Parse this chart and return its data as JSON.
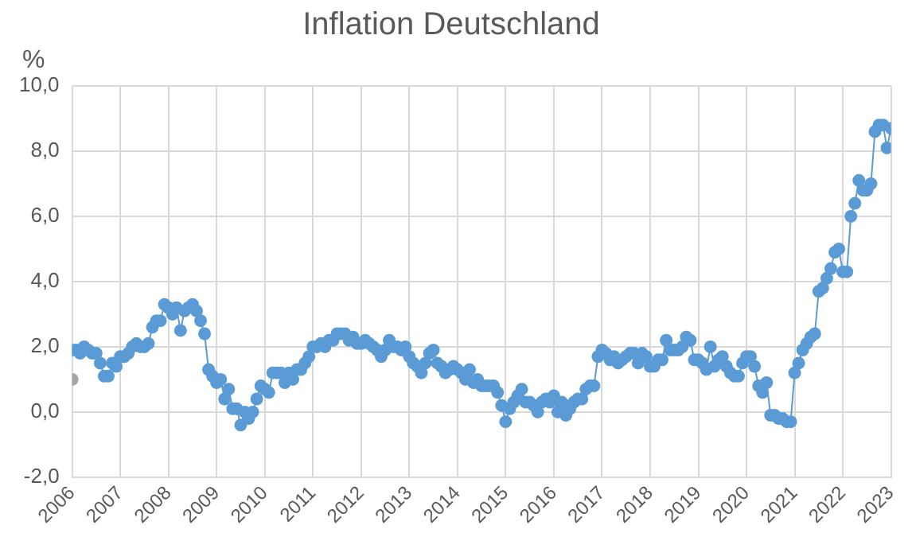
{
  "chart_data": {
    "type": "line",
    "title": "Inflation Deutschland",
    "ylabel": "%",
    "xlim": [
      "2006",
      "2023"
    ],
    "xticks": [
      "2006",
      "2007",
      "2008",
      "2009",
      "2010",
      "2011",
      "2012",
      "2013",
      "2014",
      "2015",
      "2016",
      "2017",
      "2018",
      "2019",
      "2020",
      "2021",
      "2022",
      "2023"
    ],
    "ylim": [
      -2,
      10
    ],
    "yticks": [
      {
        "value": -2,
        "label": "-2,0"
      },
      {
        "value": 0,
        "label": "0,0"
      },
      {
        "value": 2,
        "label": "2,0"
      },
      {
        "value": 4,
        "label": "4,0"
      },
      {
        "value": 6,
        "label": "6,0"
      },
      {
        "value": 8,
        "label": "8,0"
      },
      {
        "value": 10,
        "label": "10,0"
      }
    ],
    "grid": true,
    "legend": false,
    "marker": "circle",
    "line_style": "solid",
    "series": [
      {
        "color": "#5b9bd5",
        "x": [
          "2006-01",
          "2006-02",
          "2006-03",
          "2006-04",
          "2006-05",
          "2006-06",
          "2006-07",
          "2006-08",
          "2006-09",
          "2006-10",
          "2006-11",
          "2006-12",
          "2007-01",
          "2007-02",
          "2007-03",
          "2007-04",
          "2007-05",
          "2007-06",
          "2007-07",
          "2007-08",
          "2007-09",
          "2007-10",
          "2007-11",
          "2007-12",
          "2008-01",
          "2008-02",
          "2008-03",
          "2008-04",
          "2008-05",
          "2008-06",
          "2008-07",
          "2008-08",
          "2008-09",
          "2008-10",
          "2008-11",
          "2008-12",
          "2009-01",
          "2009-02",
          "2009-03",
          "2009-04",
          "2009-05",
          "2009-06",
          "2009-07",
          "2009-08",
          "2009-09",
          "2009-10",
          "2009-11",
          "2009-12",
          "2010-01",
          "2010-02",
          "2010-03",
          "2010-04",
          "2010-05",
          "2010-06",
          "2010-07",
          "2010-08",
          "2010-09",
          "2010-10",
          "2010-11",
          "2010-12",
          "2011-01",
          "2011-02",
          "2011-03",
          "2011-04",
          "2011-05",
          "2011-06",
          "2011-07",
          "2011-08",
          "2011-09",
          "2011-10",
          "2011-11",
          "2011-12",
          "2012-01",
          "2012-02",
          "2012-03",
          "2012-04",
          "2012-05",
          "2012-06",
          "2012-07",
          "2012-08",
          "2012-09",
          "2012-10",
          "2012-11",
          "2012-12",
          "2013-01",
          "2013-02",
          "2013-03",
          "2013-04",
          "2013-05",
          "2013-06",
          "2013-07",
          "2013-08",
          "2013-09",
          "2013-10",
          "2013-11",
          "2013-12",
          "2014-01",
          "2014-02",
          "2014-03",
          "2014-04",
          "2014-05",
          "2014-06",
          "2014-07",
          "2014-08",
          "2014-09",
          "2014-10",
          "2014-11",
          "2014-12",
          "2015-01",
          "2015-02",
          "2015-03",
          "2015-04",
          "2015-05",
          "2015-06",
          "2015-07",
          "2015-08",
          "2015-09",
          "2015-10",
          "2015-11",
          "2015-12",
          "2016-01",
          "2016-02",
          "2016-03",
          "2016-04",
          "2016-05",
          "2016-06",
          "2016-07",
          "2016-08",
          "2016-09",
          "2016-10",
          "2016-11",
          "2016-12",
          "2017-01",
          "2017-02",
          "2017-03",
          "2017-04",
          "2017-05",
          "2017-06",
          "2017-07",
          "2017-08",
          "2017-09",
          "2017-10",
          "2017-11",
          "2017-12",
          "2018-01",
          "2018-02",
          "2018-03",
          "2018-04",
          "2018-05",
          "2018-06",
          "2018-07",
          "2018-08",
          "2018-09",
          "2018-10",
          "2018-11",
          "2018-12",
          "2019-01",
          "2019-02",
          "2019-03",
          "2019-04",
          "2019-05",
          "2019-06",
          "2019-07",
          "2019-08",
          "2019-09",
          "2019-10",
          "2019-11",
          "2019-12",
          "2020-01",
          "2020-02",
          "2020-03",
          "2020-04",
          "2020-05",
          "2020-06",
          "2020-07",
          "2020-08",
          "2020-09",
          "2020-10",
          "2020-11",
          "2020-12",
          "2021-01",
          "2021-02",
          "2021-03",
          "2021-04",
          "2021-05",
          "2021-06",
          "2021-07",
          "2021-08",
          "2021-09",
          "2021-10",
          "2021-11",
          "2021-12",
          "2022-01",
          "2022-02",
          "2022-03",
          "2022-04",
          "2022-05",
          "2022-06",
          "2022-07",
          "2022-08",
          "2022-09",
          "2022-10",
          "2022-11",
          "2022-12",
          "2023-01"
        ],
        "values": [
          1.9,
          1.9,
          1.8,
          2.0,
          1.9,
          1.8,
          1.8,
          1.5,
          1.1,
          1.1,
          1.5,
          1.4,
          1.7,
          1.7,
          1.8,
          2.0,
          2.1,
          2.0,
          2.0,
          2.1,
          2.6,
          2.8,
          2.8,
          3.3,
          3.2,
          3.0,
          3.2,
          2.5,
          3.1,
          3.2,
          3.3,
          3.1,
          2.8,
          2.4,
          1.3,
          1.1,
          0.9,
          1.0,
          0.4,
          0.7,
          0.1,
          0.1,
          -0.4,
          0.0,
          -0.2,
          0.0,
          0.4,
          0.8,
          0.7,
          0.6,
          1.2,
          1.2,
          1.2,
          0.9,
          1.2,
          1.0,
          1.3,
          1.3,
          1.5,
          1.7,
          2.0,
          2.0,
          2.1,
          2.0,
          2.2,
          2.2,
          2.4,
          2.4,
          2.4,
          2.2,
          2.3,
          2.1,
          2.1,
          2.2,
          2.1,
          2.0,
          1.9,
          1.7,
          1.9,
          2.2,
          2.0,
          2.0,
          1.9,
          2.0,
          1.7,
          1.5,
          1.4,
          1.2,
          1.5,
          1.8,
          1.9,
          1.5,
          1.4,
          1.2,
          1.3,
          1.4,
          1.3,
          1.2,
          1.0,
          1.3,
          0.9,
          1.0,
          0.8,
          0.8,
          0.8,
          0.8,
          0.6,
          0.2,
          -0.3,
          0.1,
          0.3,
          0.5,
          0.7,
          0.3,
          0.3,
          0.2,
          0.0,
          0.3,
          0.4,
          0.3,
          0.5,
          0.0,
          0.3,
          -0.1,
          0.1,
          0.3,
          0.4,
          0.4,
          0.7,
          0.8,
          0.8,
          1.7,
          1.9,
          1.8,
          1.6,
          1.7,
          1.5,
          1.6,
          1.7,
          1.8,
          1.8,
          1.5,
          1.8,
          1.7,
          1.4,
          1.4,
          1.6,
          1.6,
          2.2,
          1.9,
          1.9,
          1.9,
          2.0,
          2.3,
          2.2,
          1.6,
          1.6,
          1.5,
          1.3,
          2.0,
          1.4,
          1.6,
          1.7,
          1.4,
          1.2,
          1.1,
          1.1,
          1.5,
          1.7,
          1.7,
          1.4,
          0.8,
          0.6,
          0.9,
          -0.1,
          -0.1,
          -0.2,
          -0.2,
          -0.3,
          -0.3,
          1.2,
          1.5,
          1.9,
          2.1,
          2.3,
          2.4,
          3.7,
          3.8,
          4.1,
          4.4,
          4.9,
          5.0,
          4.3,
          4.3,
          6.0,
          6.4,
          7.1,
          6.8,
          6.8,
          7.0,
          8.6,
          8.8,
          8.8,
          8.1,
          8.7
        ]
      },
      {
        "color": "#a5a5a5",
        "x": [
          "2006-01"
        ],
        "values": [
          1.0
        ]
      }
    ]
  }
}
